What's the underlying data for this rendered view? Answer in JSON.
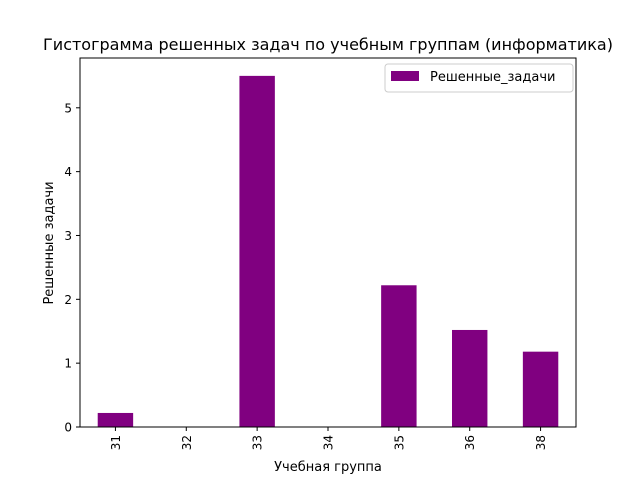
{
  "chart_data": {
    "type": "bar",
    "title": "Гистограмма решенных задач по учебным группам (информатика)",
    "xlabel": "Учебная группа",
    "ylabel": "Решенные задачи",
    "categories": [
      "31",
      "32",
      "33",
      "34",
      "35",
      "36",
      "38"
    ],
    "series": [
      {
        "name": "Решенные_задачи",
        "values": [
          0.22,
          0,
          5.5,
          0,
          2.22,
          1.52,
          1.18
        ]
      }
    ],
    "ylim": [
      0,
      5.78
    ],
    "yticks": [
      "0",
      "1",
      "2",
      "3",
      "4",
      "5"
    ],
    "legend": "top-right",
    "grid": false,
    "bar_color": "#800080"
  }
}
